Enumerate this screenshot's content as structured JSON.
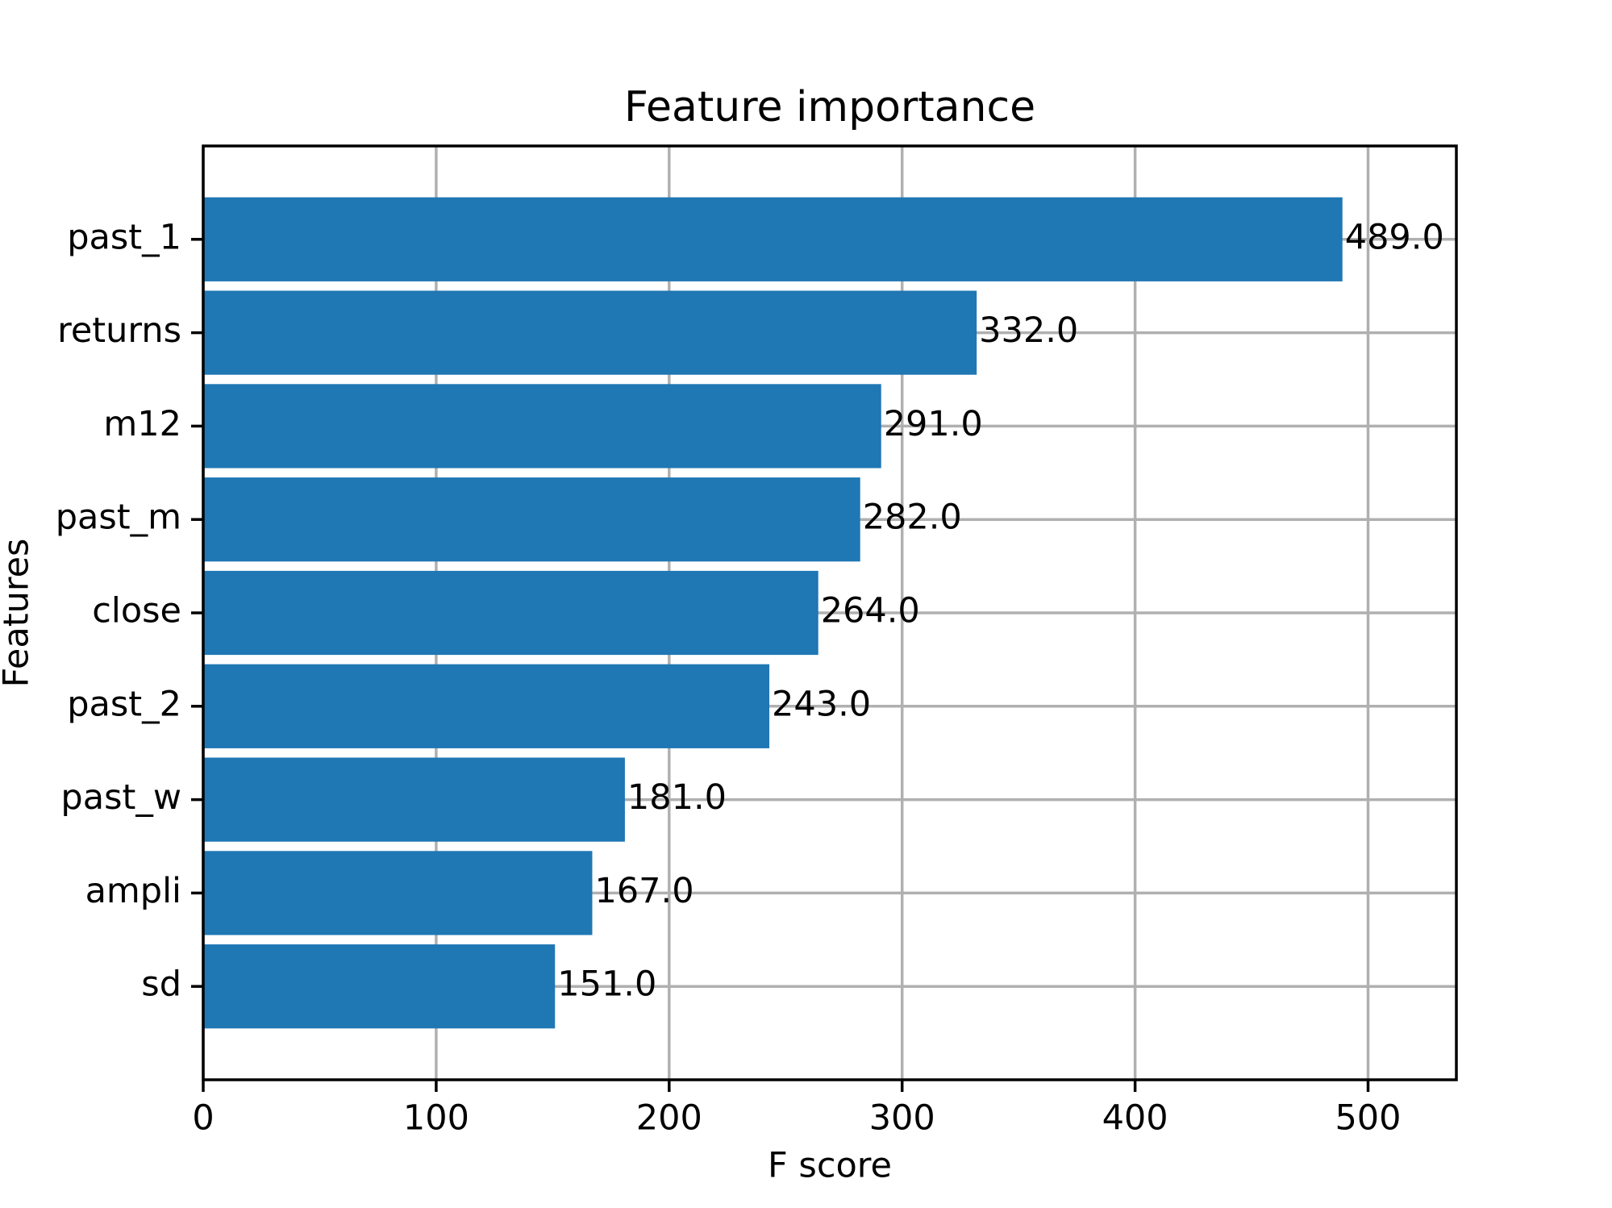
{
  "chart_data": {
    "type": "barh",
    "title": "Feature importance",
    "x_label": "F score",
    "y_label": "Features",
    "categories": [
      "past_1",
      "returns",
      "m12",
      "past_m",
      "close",
      "past_2",
      "past_w",
      "ampli",
      "sd"
    ],
    "values": [
      489,
      332,
      291,
      282,
      264,
      243,
      181,
      167,
      151
    ],
    "value_labels": [
      "489.0",
      "332.0",
      "291.0",
      "282.0",
      "264.0",
      "243.0",
      "181.0",
      "167.0",
      "151.0"
    ],
    "color": "#1f77b4",
    "xlim": [
      0,
      537.9
    ],
    "xticks": [
      0,
      100,
      200,
      300,
      400,
      500
    ],
    "grid": true
  }
}
